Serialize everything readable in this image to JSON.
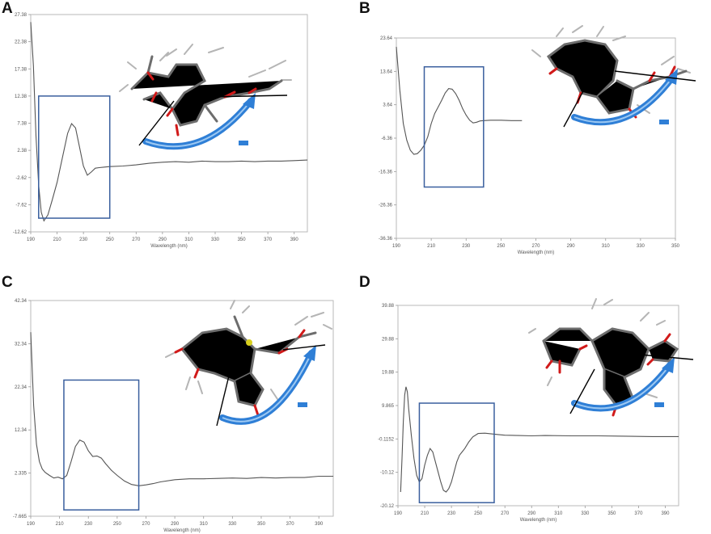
{
  "chart_data": [
    {
      "panel": "A",
      "type": "line",
      "xlabel": "Wavelength (nm)",
      "xlim": [
        190,
        400
      ],
      "ylim": [
        -12.62,
        27.38
      ],
      "x_ticks": [
        "190",
        "210",
        "230",
        "250",
        "270",
        "290",
        "310",
        "330",
        "350",
        "370",
        "390"
      ],
      "y_ticks": [
        "27.38",
        "22.38",
        "17.38",
        "12.38",
        "7.38",
        "2.38",
        "-2.62",
        "-7.62",
        "-12.62"
      ],
      "x": [
        190,
        192,
        194,
        196,
        198,
        200,
        203,
        206,
        210,
        214,
        218,
        221,
        224,
        227,
        230,
        233,
        236,
        239,
        242,
        246,
        250,
        260,
        270,
        280,
        290,
        300,
        310,
        320,
        330,
        340,
        350,
        360,
        370,
        380,
        390,
        400
      ],
      "y": [
        26,
        18,
        5,
        -4,
        -9,
        -10.6,
        -9.5,
        -7,
        -3.5,
        1,
        5.5,
        7.3,
        6.5,
        3,
        -0.5,
        -2.2,
        -1.6,
        -0.9,
        -0.8,
        -0.7,
        -0.6,
        -0.5,
        -0.3,
        0,
        0.2,
        0.3,
        0.2,
        0.4,
        0.3,
        0.3,
        0.4,
        0.3,
        0.4,
        0.4,
        0.5,
        0.6
      ],
      "highlight_x": [
        196,
        250
      ],
      "highlight_y": [
        -10.1,
        12.38
      ]
    },
    {
      "panel": "B",
      "type": "line",
      "xlabel": "Wavelength (nm)",
      "xlim": [
        190,
        350
      ],
      "ylim": [
        -36.36,
        23.64
      ],
      "x_ticks": [
        "190",
        "210",
        "230",
        "250",
        "270",
        "290",
        "310",
        "330",
        "350"
      ],
      "y_ticks": [
        "23.64",
        "13.64",
        "3.64",
        "-6.36",
        "-16.36",
        "-26.36",
        "-36.36"
      ],
      "x": [
        190,
        192,
        194,
        196,
        198,
        200,
        202,
        204,
        206,
        208,
        210,
        212,
        214,
        216,
        218,
        220,
        222,
        224,
        226,
        228,
        230,
        232,
        234,
        236,
        238,
        240,
        244,
        250,
        256,
        262
      ],
      "y": [
        21,
        8,
        -2,
        -7,
        -10,
        -11.2,
        -11,
        -10,
        -8.5,
        -6,
        -2,
        1,
        3,
        5,
        7.2,
        8.5,
        8.3,
        7,
        5,
        2.5,
        0.5,
        -1,
        -1.8,
        -1.6,
        -1.2,
        -1.1,
        -1,
        -1,
        -1.1,
        -1.1
      ],
      "highlight_x": [
        206,
        240
      ],
      "highlight_y": [
        -21,
        15
      ]
    },
    {
      "panel": "C",
      "type": "line",
      "xlabel": "Wavelength (nm)",
      "xlim": [
        190,
        400
      ],
      "ylim": [
        -7.665,
        42.34
      ],
      "x_ticks": [
        "190",
        "210",
        "230",
        "250",
        "270",
        "290",
        "310",
        "330",
        "350",
        "370",
        "390"
      ],
      "y_ticks": [
        "42.34",
        "32.34",
        "22.34",
        "12.34",
        "2.335",
        "-7.665"
      ],
      "x": [
        190,
        192,
        194,
        196,
        198,
        200,
        203,
        206,
        209,
        212,
        215,
        218,
        221,
        224,
        227,
        230,
        233,
        236,
        239,
        242,
        246,
        250,
        255,
        260,
        265,
        270,
        275,
        280,
        290,
        300,
        310,
        320,
        330,
        340,
        350,
        360,
        370,
        380,
        390,
        400
      ],
      "y": [
        35,
        18,
        9,
        5,
        3.3,
        2.5,
        1.8,
        1.2,
        1.4,
        1,
        1.8,
        5,
        8.5,
        10,
        9.5,
        7.5,
        6.2,
        6.3,
        5.8,
        4.5,
        3,
        1.8,
        0.5,
        -0.3,
        -0.6,
        -0.4,
        -0.1,
        0.3,
        0.8,
        1,
        1,
        1.1,
        1.2,
        1.1,
        1.3,
        1.2,
        1.3,
        1.3,
        1.6,
        1.6
      ],
      "highlight_x": [
        213,
        265
      ],
      "highlight_y": [
        -6.2,
        23.9
      ]
    },
    {
      "panel": "D",
      "type": "line",
      "xlabel": "Wavelength (nm)",
      "xlim": [
        190,
        400
      ],
      "ylim": [
        -20.12,
        39.88
      ],
      "x_ticks": [
        "190",
        "210",
        "230",
        "250",
        "270",
        "290",
        "310",
        "330",
        "350",
        "370",
        "390"
      ],
      "y_ticks": [
        "39.88",
        "29.88",
        "19.88",
        "9.865",
        "-0.1152",
        "-10.12",
        "-20.12"
      ],
      "x": [
        192,
        193,
        194,
        195,
        196,
        197,
        198,
        200,
        202,
        204,
        206,
        208,
        210,
        212,
        214,
        216,
        218,
        220,
        222,
        224,
        226,
        228,
        230,
        232,
        234,
        236,
        238,
        240,
        243,
        246,
        250,
        255,
        260,
        265,
        270,
        280,
        290,
        300,
        320,
        340,
        360,
        380,
        400
      ],
      "y": [
        -16,
        -6,
        5,
        13,
        15.5,
        14,
        9,
        1,
        -6,
        -11,
        -13,
        -12,
        -8,
        -5,
        -3,
        -4,
        -7,
        -10,
        -13,
        -15.5,
        -16,
        -15,
        -13,
        -10,
        -7,
        -5,
        -4,
        -3,
        -1,
        0.5,
        1.5,
        1.6,
        1.4,
        1.2,
        1,
        0.9,
        0.8,
        0.9,
        0.8,
        0.8,
        0.7,
        0.6,
        0.6
      ],
      "highlight_x": [
        206,
        262
      ],
      "highlight_y": [
        -19.2,
        10.6
      ]
    }
  ],
  "panel_labels": [
    "A",
    "B",
    "C",
    "D"
  ],
  "colors": {
    "spectrum": "#555555",
    "highlight_box": "#3a5f9e",
    "arrow": "#2f7fd6",
    "oxygen": "#d11a1a",
    "carbon": "#6d6d6d",
    "hydrogen": "#b5b5b5"
  }
}
